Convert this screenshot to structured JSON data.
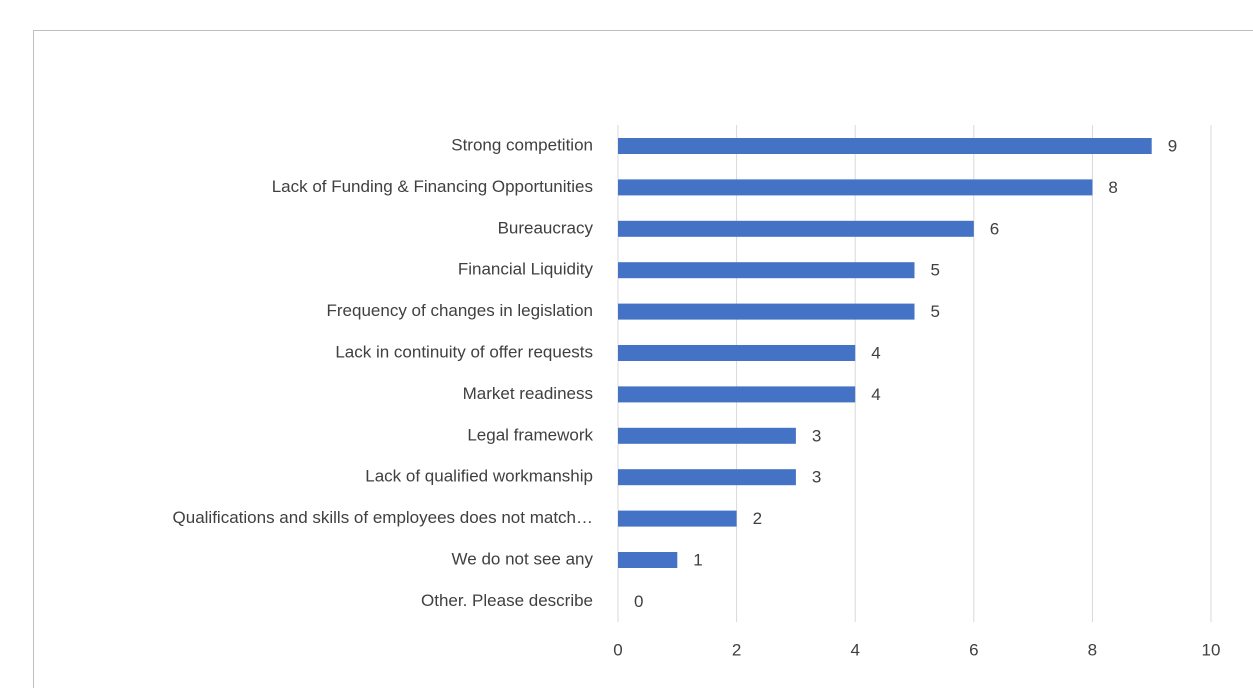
{
  "chart_data": {
    "type": "hbar",
    "categories": [
      "Strong competition",
      "Lack of Funding & Financing Opportunities",
      "Bureaucracy",
      "Financial Liquidity",
      "Frequency of changes in legislation",
      "Lack in continuity of offer requests",
      "Market readiness",
      "Legal framework",
      "Lack of qualified workmanship",
      "Qualifications and skills of employees does not match…",
      "We do not see any",
      "Other. Please describe"
    ],
    "values": [
      9,
      8,
      6,
      5,
      5,
      4,
      4,
      3,
      3,
      2,
      1,
      0
    ],
    "color": "#4472c4",
    "xlim": [
      0,
      10
    ],
    "xticks": [
      0,
      2,
      4,
      6,
      8,
      10
    ],
    "grid": true
  }
}
